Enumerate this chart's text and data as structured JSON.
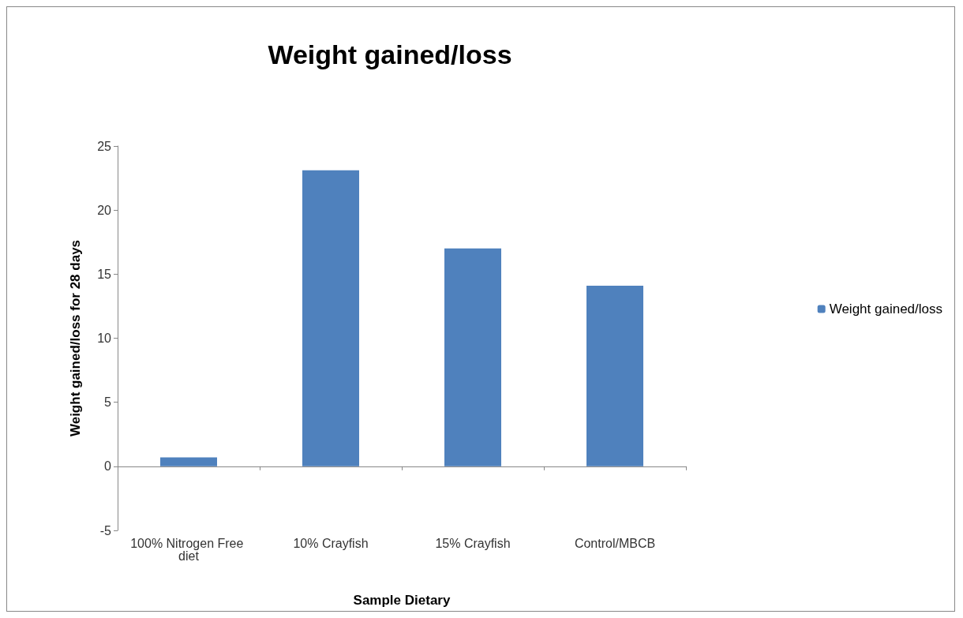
{
  "chart_data": {
    "type": "bar",
    "title": "Weight gained/loss",
    "xlabel": "Sample Dietary",
    "ylabel": "Weight gained/loss for 28 days",
    "categories": [
      "100% Nitrogen Free diet",
      "10% Crayfish",
      "15% Crayfish",
      "Control/MBCB"
    ],
    "series": [
      {
        "name": "Weight gained/loss",
        "color": "#4f81bd",
        "values": [
          0.7,
          23.1,
          17.0,
          14.1
        ]
      }
    ],
    "ylim": [
      -5,
      25
    ],
    "yticks": [
      -5,
      0,
      5,
      10,
      15,
      20,
      25
    ],
    "legend": "right"
  }
}
